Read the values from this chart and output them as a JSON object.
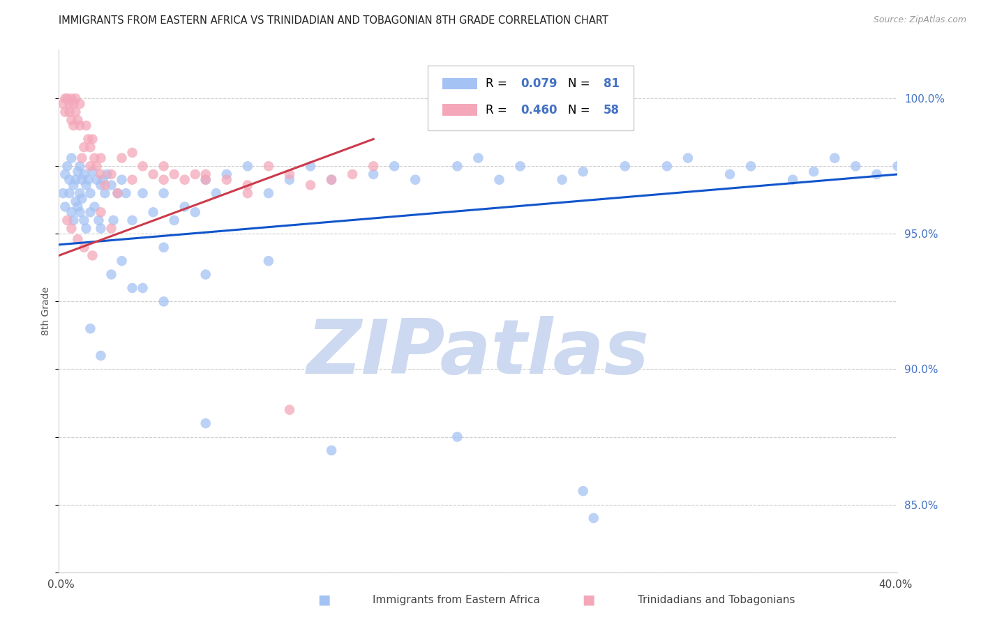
{
  "title": "IMMIGRANTS FROM EASTERN AFRICA VS TRINIDADIAN AND TOBAGONIAN 8TH GRADE CORRELATION CHART",
  "source": "Source: ZipAtlas.com",
  "ylabel": "8th Grade",
  "right_yticks": [
    85.0,
    90.0,
    95.0,
    100.0
  ],
  "xlim": [
    0.0,
    40.0
  ],
  "ylim": [
    82.5,
    101.8
  ],
  "blue_R": 0.079,
  "blue_N": 81,
  "pink_R": 0.46,
  "pink_N": 58,
  "blue_color": "#a4c2f4",
  "pink_color": "#f4a7b9",
  "blue_line_color": "#1155cc",
  "pink_line_color": "#cc3a4b",
  "watermark_color": "#ccd9f0",
  "watermark_text": "ZIPatlas",
  "blue_line_x0": 0.0,
  "blue_line_y0": 94.6,
  "blue_line_x1": 40.0,
  "blue_line_y1": 97.2,
  "pink_line_x0": 0.0,
  "pink_line_y0": 94.2,
  "pink_line_x1": 15.0,
  "pink_line_y1": 98.5,
  "blue_scatter_x": [
    0.2,
    0.3,
    0.3,
    0.4,
    0.5,
    0.5,
    0.6,
    0.6,
    0.7,
    0.7,
    0.8,
    0.8,
    0.9,
    0.9,
    1.0,
    1.0,
    1.0,
    1.1,
    1.1,
    1.2,
    1.2,
    1.3,
    1.3,
    1.4,
    1.5,
    1.5,
    1.6,
    1.7,
    1.8,
    1.9,
    2.0,
    2.0,
    2.1,
    2.2,
    2.3,
    2.5,
    2.6,
    2.8,
    3.0,
    3.2,
    3.5,
    4.0,
    4.5,
    5.0,
    5.5,
    6.0,
    6.5,
    7.0,
    7.5,
    8.0,
    9.0,
    10.0,
    11.0,
    12.0,
    13.0,
    15.0,
    16.0,
    17.0,
    19.0,
    20.0,
    21.0,
    22.0,
    24.0,
    25.0,
    27.0,
    29.0,
    30.0,
    32.0,
    33.0,
    35.0,
    36.0,
    37.0,
    38.0,
    39.0,
    40.0,
    2.5,
    3.0,
    4.0,
    5.0,
    7.0,
    10.0
  ],
  "blue_scatter_y": [
    96.5,
    97.2,
    96.0,
    97.5,
    97.0,
    96.5,
    97.8,
    95.8,
    96.8,
    95.5,
    97.0,
    96.2,
    97.3,
    96.0,
    97.5,
    96.5,
    95.8,
    97.0,
    96.3,
    97.2,
    95.5,
    96.8,
    95.2,
    97.0,
    96.5,
    95.8,
    97.3,
    96.0,
    97.0,
    95.5,
    96.8,
    95.2,
    97.0,
    96.5,
    97.2,
    96.8,
    95.5,
    96.5,
    97.0,
    96.5,
    95.5,
    96.5,
    95.8,
    96.5,
    95.5,
    96.0,
    95.8,
    97.0,
    96.5,
    97.2,
    97.5,
    96.5,
    97.0,
    97.5,
    97.0,
    97.2,
    97.5,
    97.0,
    97.5,
    97.8,
    97.0,
    97.5,
    97.0,
    97.3,
    97.5,
    97.5,
    97.8,
    97.2,
    97.5,
    97.0,
    97.3,
    97.8,
    97.5,
    97.2,
    97.5,
    93.5,
    94.0,
    93.0,
    94.5,
    93.5,
    94.0
  ],
  "blue_outlier_x": [
    1.5,
    2.0,
    3.5,
    5.0,
    7.0,
    13.0,
    19.0,
    25.0,
    25.5
  ],
  "blue_outlier_y": [
    91.5,
    90.5,
    93.0,
    92.5,
    88.0,
    87.0,
    87.5,
    85.5,
    84.5
  ],
  "pink_scatter_x": [
    0.2,
    0.3,
    0.3,
    0.4,
    0.5,
    0.5,
    0.6,
    0.6,
    0.7,
    0.7,
    0.8,
    0.8,
    0.9,
    1.0,
    1.0,
    1.1,
    1.2,
    1.3,
    1.4,
    1.5,
    1.5,
    1.6,
    1.7,
    1.8,
    2.0,
    2.0,
    2.2,
    2.5,
    2.8,
    3.0,
    3.5,
    4.0,
    4.5,
    5.0,
    5.5,
    6.0,
    6.5,
    7.0,
    8.0,
    9.0,
    10.0,
    11.0,
    12.0,
    13.0,
    14.0,
    15.0,
    0.4,
    0.6,
    0.9,
    1.2,
    1.6,
    2.0,
    2.5,
    3.5,
    5.0,
    7.0,
    9.0,
    11.0
  ],
  "pink_scatter_y": [
    99.8,
    100.0,
    99.5,
    100.0,
    99.8,
    99.5,
    100.0,
    99.2,
    99.8,
    99.0,
    100.0,
    99.5,
    99.2,
    99.8,
    99.0,
    97.8,
    98.2,
    99.0,
    98.5,
    98.2,
    97.5,
    98.5,
    97.8,
    97.5,
    97.8,
    97.2,
    96.8,
    97.2,
    96.5,
    97.8,
    98.0,
    97.5,
    97.2,
    97.0,
    97.2,
    97.0,
    97.2,
    97.0,
    97.0,
    96.5,
    97.5,
    97.2,
    96.8,
    97.0,
    97.2,
    97.5,
    95.5,
    95.2,
    94.8,
    94.5,
    94.2,
    95.8,
    95.2,
    97.0,
    97.5,
    97.2,
    96.8,
    88.5
  ],
  "grid_color": "#cccccc",
  "title_fontsize": 10.5,
  "source_fontsize": 9
}
